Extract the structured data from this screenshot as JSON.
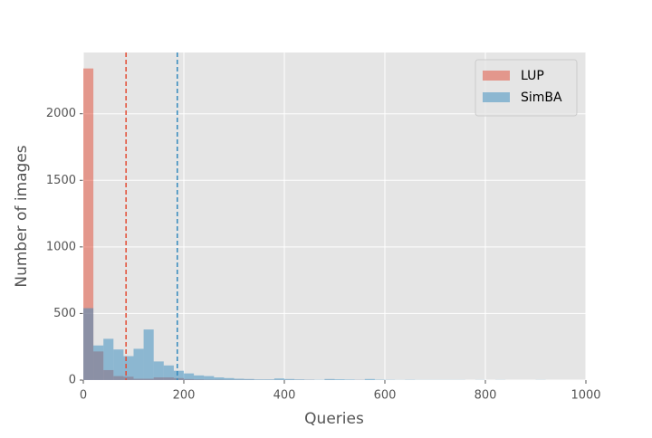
{
  "chart_data": {
    "type": "histogram",
    "xlabel": "Queries",
    "ylabel": "Number of images",
    "bins": [
      0,
      20,
      40,
      60,
      80,
      100,
      120,
      140,
      160,
      180,
      200,
      220,
      240,
      260,
      280,
      300,
      320,
      340,
      360,
      380,
      400,
      420,
      440,
      460,
      480,
      500,
      520,
      540,
      560,
      580,
      600,
      620,
      640,
      660,
      680,
      700,
      720,
      740,
      760,
      780,
      800,
      820,
      840,
      860,
      880,
      900,
      920,
      940,
      960,
      980,
      1000
    ],
    "series": [
      {
        "name": "LUP",
        "color": "#E24A33",
        "mean": 85,
        "values": [
          2340,
          215,
          75,
          30,
          25,
          10,
          10,
          20,
          20,
          15,
          8,
          5,
          3,
          3,
          2,
          2,
          2,
          1,
          1,
          1,
          1,
          1,
          1,
          0,
          1,
          0,
          0,
          1,
          0,
          0,
          0,
          0,
          0,
          0,
          0,
          0,
          0,
          0,
          0,
          0,
          0,
          0,
          0,
          0,
          0,
          0,
          0,
          0,
          0,
          0
        ]
      },
      {
        "name": "SimBA",
        "color": "#348ABD",
        "mean": 187,
        "values": [
          540,
          260,
          310,
          230,
          180,
          235,
          380,
          140,
          110,
          70,
          50,
          35,
          30,
          20,
          15,
          10,
          8,
          5,
          5,
          12,
          8,
          5,
          3,
          2,
          8,
          6,
          4,
          2,
          8,
          3,
          2,
          1,
          2,
          1,
          1,
          1,
          1,
          1,
          0,
          1,
          0,
          1,
          0,
          0,
          0,
          1,
          0,
          0,
          0,
          0
        ]
      }
    ],
    "xlim": [
      0,
      1000
    ],
    "xticks": [
      0,
      200,
      400,
      600,
      800,
      1000
    ],
    "ylim": [
      0,
      2460
    ],
    "yticks": [
      0,
      500,
      1000,
      1500,
      2000
    ],
    "grid": true,
    "legend": "upper right"
  }
}
